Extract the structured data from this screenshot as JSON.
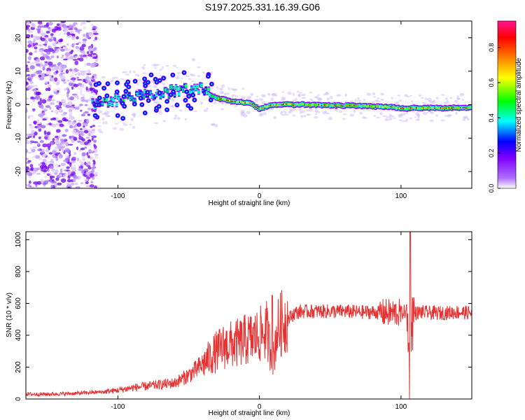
{
  "title": "S197.2025.331.16.39.G06",
  "chart_data": [
    {
      "type": "heatmap",
      "name": "spectrogram",
      "xlabel": "Height of straight line (km)",
      "ylabel": "Frequency (Hz)",
      "xlim": [
        -165,
        150
      ],
      "ylim": [
        -25,
        25
      ],
      "xticks": [
        -100,
        0,
        100
      ],
      "yticks": [
        -20,
        -10,
        0,
        10,
        20
      ],
      "grid": false,
      "ridge": [
        [
          -118,
          0
        ],
        [
          -110,
          1
        ],
        [
          -100,
          1.5
        ],
        [
          -90,
          2
        ],
        [
          -80,
          3
        ],
        [
          -70,
          3.5
        ],
        [
          -60,
          4
        ],
        [
          -50,
          4.5
        ],
        [
          -40,
          5
        ],
        [
          -35,
          3
        ],
        [
          -30,
          2
        ],
        [
          -25,
          1.5
        ],
        [
          -20,
          1
        ],
        [
          -12,
          0.8
        ],
        [
          -5,
          0.2
        ],
        [
          0,
          -1.5
        ],
        [
          5,
          -0.5
        ],
        [
          15,
          0
        ],
        [
          30,
          0
        ],
        [
          60,
          -0.3
        ],
        [
          80,
          -0.5
        ],
        [
          95,
          -0.8
        ],
        [
          100,
          -1.2
        ],
        [
          110,
          -1
        ],
        [
          130,
          -1
        ],
        [
          150,
          -0.8
        ]
      ],
      "colorbar": {
        "label": "Normalized spectral amplitude",
        "ticks": [
          0.0,
          0.2,
          0.4,
          0.6,
          0.8
        ],
        "range": [
          0,
          0.95
        ],
        "colors": [
          "#ffffff",
          "#7f00ff",
          "#0000ff",
          "#00ffff",
          "#00ff00",
          "#ffff00",
          "#ff7f00",
          "#ff0000",
          "#ff1493"
        ]
      }
    },
    {
      "type": "line",
      "name": "snr",
      "xlabel": "Height of straight line (km)",
      "ylabel": "SNR (10 * v/v)",
      "xlim": [
        -165,
        150
      ],
      "ylim": [
        0,
        1050
      ],
      "xticks": [
        -100,
        0,
        100
      ],
      "yticks": [
        0,
        200,
        400,
        600,
        800,
        1000
      ],
      "color": "#e83030",
      "series": [
        {
          "name": "SNR",
          "x": [
            -165,
            -150,
            -130,
            -120,
            -110,
            -100,
            -90,
            -80,
            -70,
            -60,
            -50,
            -45,
            -40,
            -35,
            -30,
            -25,
            -20,
            -15,
            -10,
            -5,
            0,
            5,
            8,
            10,
            12,
            15,
            20,
            25,
            30,
            40,
            50,
            60,
            70,
            80,
            90,
            95,
            100,
            103,
            105,
            106,
            107,
            110,
            115,
            120,
            130,
            140,
            150
          ],
          "values": [
            30,
            30,
            35,
            40,
            45,
            55,
            70,
            80,
            90,
            100,
            150,
            180,
            220,
            260,
            300,
            330,
            340,
            350,
            370,
            380,
            400,
            430,
            300,
            250,
            420,
            470,
            500,
            540,
            550,
            550,
            550,
            550,
            545,
            545,
            540,
            540,
            540,
            550,
            450,
            100,
            500,
            540,
            545,
            540,
            540,
            545,
            540
          ]
        }
      ],
      "annotations": [
        {
          "x": 9,
          "y": 650
        },
        {
          "x": 106.5,
          "y": 1050
        }
      ]
    }
  ]
}
